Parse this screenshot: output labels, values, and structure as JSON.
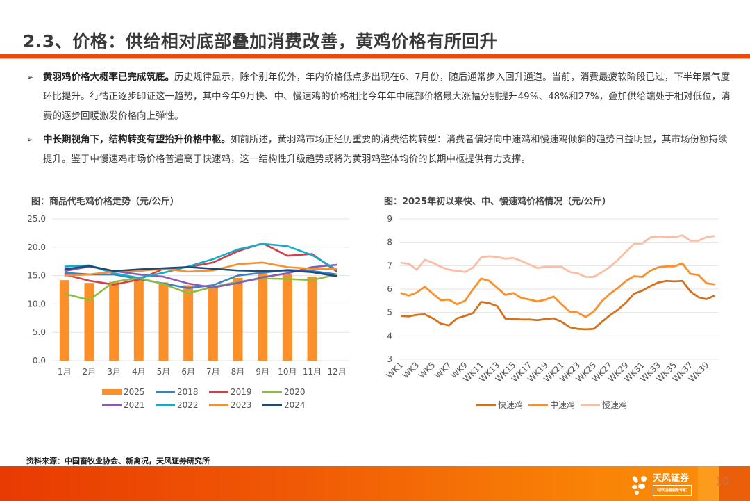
{
  "header": {
    "title": "2.3、价格：供给相对底部叠加消费改善，黄鸡价格有所回升"
  },
  "bullets": [
    {
      "bold": "黄羽鸡价格大概率已完成筑底。",
      "text": "历史规律显示，除个别年份外，年内价格低点多出现在6、7月份，随后通常步入回升通道。当前，消费最疲软阶段已过，下半年景气度环比提升。行情正逐步印证这一趋势，其中今年9月快、中、慢速鸡的价格相比今年年中底部价格最大涨幅分别提升49%、48%和27%，叠加供给端处于相对低位，消费的逐步回暖激发价格向上弹性。"
    },
    {
      "bold": "中长期视角下，结构转变有望抬升价格中枢。",
      "text": "如前所述，黄羽鸡市场正经历重要的消费结构转型：消费者偏好向中速鸡和慢速鸡倾斜的趋势日益明显，其市场份额持续提升。鉴于中慢速鸡市场价格普遍高于快速鸡，这一结构性升级趋势或将为黄羽鸡整体均价的长期中枢提供有力支撑。"
    }
  ],
  "bullet_icon": "arrow-right-icon",
  "chart_data": [
    {
      "type": "bar+line",
      "title": "图：商品代毛鸡价格走势（元/公斤）",
      "xlabel": "",
      "ylabel": "",
      "categories": [
        "1月",
        "2月",
        "3月",
        "4月",
        "5月",
        "6月",
        "7月",
        "8月",
        "9月",
        "10月",
        "11月",
        "12月"
      ],
      "ylim": [
        0,
        25
      ],
      "yticks": [
        "0.0",
        "5.0",
        "10.0",
        "15.0",
        "20.0",
        "25.0"
      ],
      "grid": true,
      "legend": "bottom",
      "bars": {
        "name": "2025",
        "color": "#fb902b",
        "values": [
          14.2,
          13.7,
          13.9,
          14.6,
          13.8,
          13.3,
          13.1,
          14.6,
          15.4,
          15.2,
          14.8,
          null
        ]
      },
      "series": [
        {
          "name": "2018",
          "color": "#3a7fc9",
          "values": [
            15.5,
            15.2,
            15.2,
            14.4,
            13.6,
            12.8,
            13.3,
            15.0,
            15.5,
            16.0,
            15.8,
            15.2
          ]
        },
        {
          "name": "2019",
          "color": "#d2404a",
          "values": [
            15.2,
            14.1,
            13.4,
            14.3,
            16.2,
            16.5,
            17.3,
            19.3,
            20.7,
            18.5,
            18.8,
            15.7
          ]
        },
        {
          "name": "2020",
          "color": "#8cbd3f",
          "values": [
            11.8,
            10.7,
            13.9,
            14.6,
            13.5,
            11.9,
            13.0,
            13.9,
            14.5,
            14.4,
            14.2,
            15.2
          ]
        },
        {
          "name": "2021",
          "color": "#8a5bb5",
          "values": [
            15.8,
            16.6,
            15.8,
            15.2,
            14.8,
            13.6,
            12.9,
            13.7,
            14.7,
            15.4,
            16.5,
            16.9
          ]
        },
        {
          "name": "2022",
          "color": "#13acc9",
          "values": [
            16.6,
            16.8,
            15.4,
            14.6,
            15.5,
            16.6,
            17.9,
            19.6,
            20.6,
            20.2,
            18.6,
            16.0
          ]
        },
        {
          "name": "2023",
          "color": "#fb902b",
          "values": [
            15.0,
            15.2,
            15.7,
            15.8,
            16.2,
            15.7,
            15.9,
            17.0,
            17.3,
            16.5,
            16.2,
            16.2
          ]
        },
        {
          "name": "2024",
          "color": "#1f4a78",
          "values": [
            16.1,
            16.7,
            15.8,
            16.1,
            16.3,
            16.5,
            16.2,
            15.9,
            15.8,
            15.9,
            15.6,
            14.9
          ]
        }
      ]
    },
    {
      "type": "line",
      "title": "图：2025年初以来快、中、慢速鸡价格情况（元/公斤）",
      "xlabel": "",
      "ylabel": "",
      "x": [
        "WK1",
        "WK2",
        "WK3",
        "WK4",
        "WK5",
        "WK6",
        "WK7",
        "WK8",
        "WK9",
        "WK10",
        "WK11",
        "WK12",
        "WK13",
        "WK14",
        "WK15",
        "WK16",
        "WK17",
        "WK18",
        "WK19",
        "WK20",
        "WK21",
        "WK22",
        "WK23",
        "WK24",
        "WK25",
        "WK26",
        "WK27",
        "WK28",
        "WK29",
        "WK30",
        "WK31",
        "WK32",
        "WK33",
        "WK34",
        "WK35",
        "WK36",
        "WK37",
        "WK38",
        "WK39",
        "WK40"
      ],
      "xtick_labels": [
        "WK1",
        "WK3",
        "WK5",
        "WK7",
        "WK9",
        "WK11",
        "WK13",
        "WK15",
        "WK17",
        "WK19",
        "WK21",
        "WK23",
        "WK25",
        "WK27",
        "WK29",
        "WK31",
        "WK33",
        "WK35",
        "WK37",
        "WK39"
      ],
      "ylim": [
        3,
        9
      ],
      "yticks": [
        "3",
        "4",
        "5",
        "6",
        "7",
        "8",
        "9"
      ],
      "grid": true,
      "legend": "bottom",
      "series": [
        {
          "name": "快速鸡",
          "color": "#d4711f",
          "values": [
            4.85,
            4.83,
            4.9,
            4.92,
            4.75,
            4.52,
            4.45,
            4.75,
            4.85,
            4.98,
            5.45,
            5.4,
            5.27,
            4.74,
            4.72,
            4.7,
            4.7,
            4.67,
            4.72,
            4.75,
            4.6,
            4.37,
            4.3,
            4.28,
            4.3,
            4.6,
            4.88,
            5.12,
            5.42,
            5.8,
            5.93,
            6.12,
            6.28,
            6.35,
            6.33,
            6.35,
            5.9,
            5.65,
            5.57,
            5.72
          ]
        },
        {
          "name": "中速鸡",
          "color": "#fb8f2c",
          "values": [
            5.83,
            5.72,
            5.85,
            6.1,
            5.8,
            5.52,
            5.55,
            5.35,
            5.5,
            6.0,
            6.45,
            6.35,
            6.05,
            5.75,
            5.83,
            5.62,
            5.55,
            5.47,
            5.55,
            5.68,
            5.35,
            5.03,
            5.0,
            4.8,
            5.05,
            5.48,
            5.8,
            6.05,
            6.35,
            6.55,
            6.52,
            6.78,
            6.93,
            6.97,
            6.97,
            7.1,
            6.65,
            6.6,
            6.25,
            6.2
          ]
        },
        {
          "name": "慢速鸡",
          "color": "#fcbea2",
          "values": [
            7.13,
            7.08,
            6.83,
            7.25,
            7.12,
            6.95,
            6.83,
            6.78,
            6.73,
            6.92,
            7.35,
            7.4,
            7.37,
            7.3,
            7.33,
            7.2,
            7.05,
            6.9,
            6.95,
            6.95,
            6.95,
            6.73,
            6.67,
            6.52,
            6.52,
            6.72,
            6.95,
            7.25,
            7.6,
            7.93,
            7.95,
            8.2,
            8.25,
            8.22,
            8.22,
            8.3,
            8.07,
            8.07,
            8.22,
            8.27
          ]
        }
      ]
    }
  ],
  "source": "资料来源：中国畜牧业协会、新禽况，天风证券研究所",
  "footer": {
    "logo_name": "天风证券",
    "logo_slogan": "（您的金融服务专家）",
    "page_number": "10"
  }
}
